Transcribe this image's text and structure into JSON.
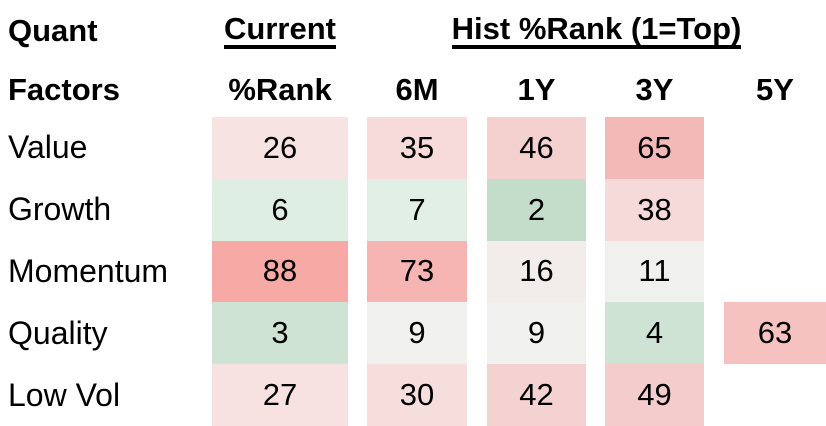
{
  "chart_data": {
    "type": "heatmap",
    "row_header_lines": [
      "Quant",
      "Factors"
    ],
    "column_groups": [
      {
        "label": "Current",
        "columns": [
          "%Rank"
        ]
      },
      {
        "label": "Hist %Rank (1=Top)",
        "columns": [
          "6M",
          "1Y",
          "3Y",
          "5Y"
        ]
      }
    ],
    "columns": [
      "%Rank",
      "6M",
      "1Y",
      "3Y",
      "5Y"
    ],
    "rows": [
      "Value",
      "Growth",
      "Momentum",
      "Quality",
      "Low Vol"
    ],
    "values": [
      [
        26,
        35,
        46,
        65,
        null
      ],
      [
        6,
        7,
        2,
        38,
        null
      ],
      [
        88,
        73,
        16,
        11,
        null
      ],
      [
        3,
        9,
        9,
        4,
        63
      ],
      [
        27,
        30,
        42,
        49,
        null
      ]
    ],
    "scale_note": "1=Top",
    "value_range": [
      1,
      100
    ],
    "color_scale": {
      "low_green": "#c4ddca",
      "mid_white": "#f1f1f0",
      "high_red": "#f6a9a5"
    },
    "legend_position": "none",
    "grid": false
  },
  "header": {
    "title_line1": "Quant",
    "title_line2": "Factors",
    "current_group_label": "Current",
    "hist_group_label": "Hist %Rank (1=Top)",
    "col_rank": "%Rank",
    "col_6m": "6M",
    "col_1y": "1Y",
    "col_3y": "3Y",
    "col_5y": "5Y"
  },
  "table": {
    "rows": [
      {
        "label": "Value",
        "cells": [
          {
            "value": "26",
            "bg": "#f7e3e2"
          },
          {
            "value": "35",
            "bg": "#f6dbda"
          },
          {
            "value": "46",
            "bg": "#f4d0cf"
          },
          {
            "value": "65",
            "bg": "#f3b9b6"
          },
          {
            "value": "",
            "bg": null
          }
        ]
      },
      {
        "label": "Growth",
        "cells": [
          {
            "value": "6",
            "bg": "#dfeee3"
          },
          {
            "value": "7",
            "bg": "#e2efe6"
          },
          {
            "value": "2",
            "bg": "#c4ddca"
          },
          {
            "value": "38",
            "bg": "#f5dad9"
          },
          {
            "value": "",
            "bg": null
          }
        ]
      },
      {
        "label": "Momentum",
        "cells": [
          {
            "value": "88",
            "bg": "#f6a9a5"
          },
          {
            "value": "73",
            "bg": "#f6b5b2"
          },
          {
            "value": "16",
            "bg": "#f2edeb"
          },
          {
            "value": "11",
            "bg": "#f0f0ef"
          },
          {
            "value": "",
            "bg": null
          }
        ]
      },
      {
        "label": "Quality",
        "cells": [
          {
            "value": "3",
            "bg": "#cfe3d4"
          },
          {
            "value": "9",
            "bg": "#f1f1f0"
          },
          {
            "value": "9",
            "bg": "#f1f1f0"
          },
          {
            "value": "4",
            "bg": "#cfe3d4"
          },
          {
            "value": "63",
            "bg": "#f5c2c0"
          }
        ]
      },
      {
        "label": "Low Vol",
        "cells": [
          {
            "value": "27",
            "bg": "#f7e2e1"
          },
          {
            "value": "30",
            "bg": "#f6dedd"
          },
          {
            "value": "42",
            "bg": "#f4d2d1"
          },
          {
            "value": "49",
            "bg": "#f4cccb"
          }
        ]
      }
    ]
  }
}
